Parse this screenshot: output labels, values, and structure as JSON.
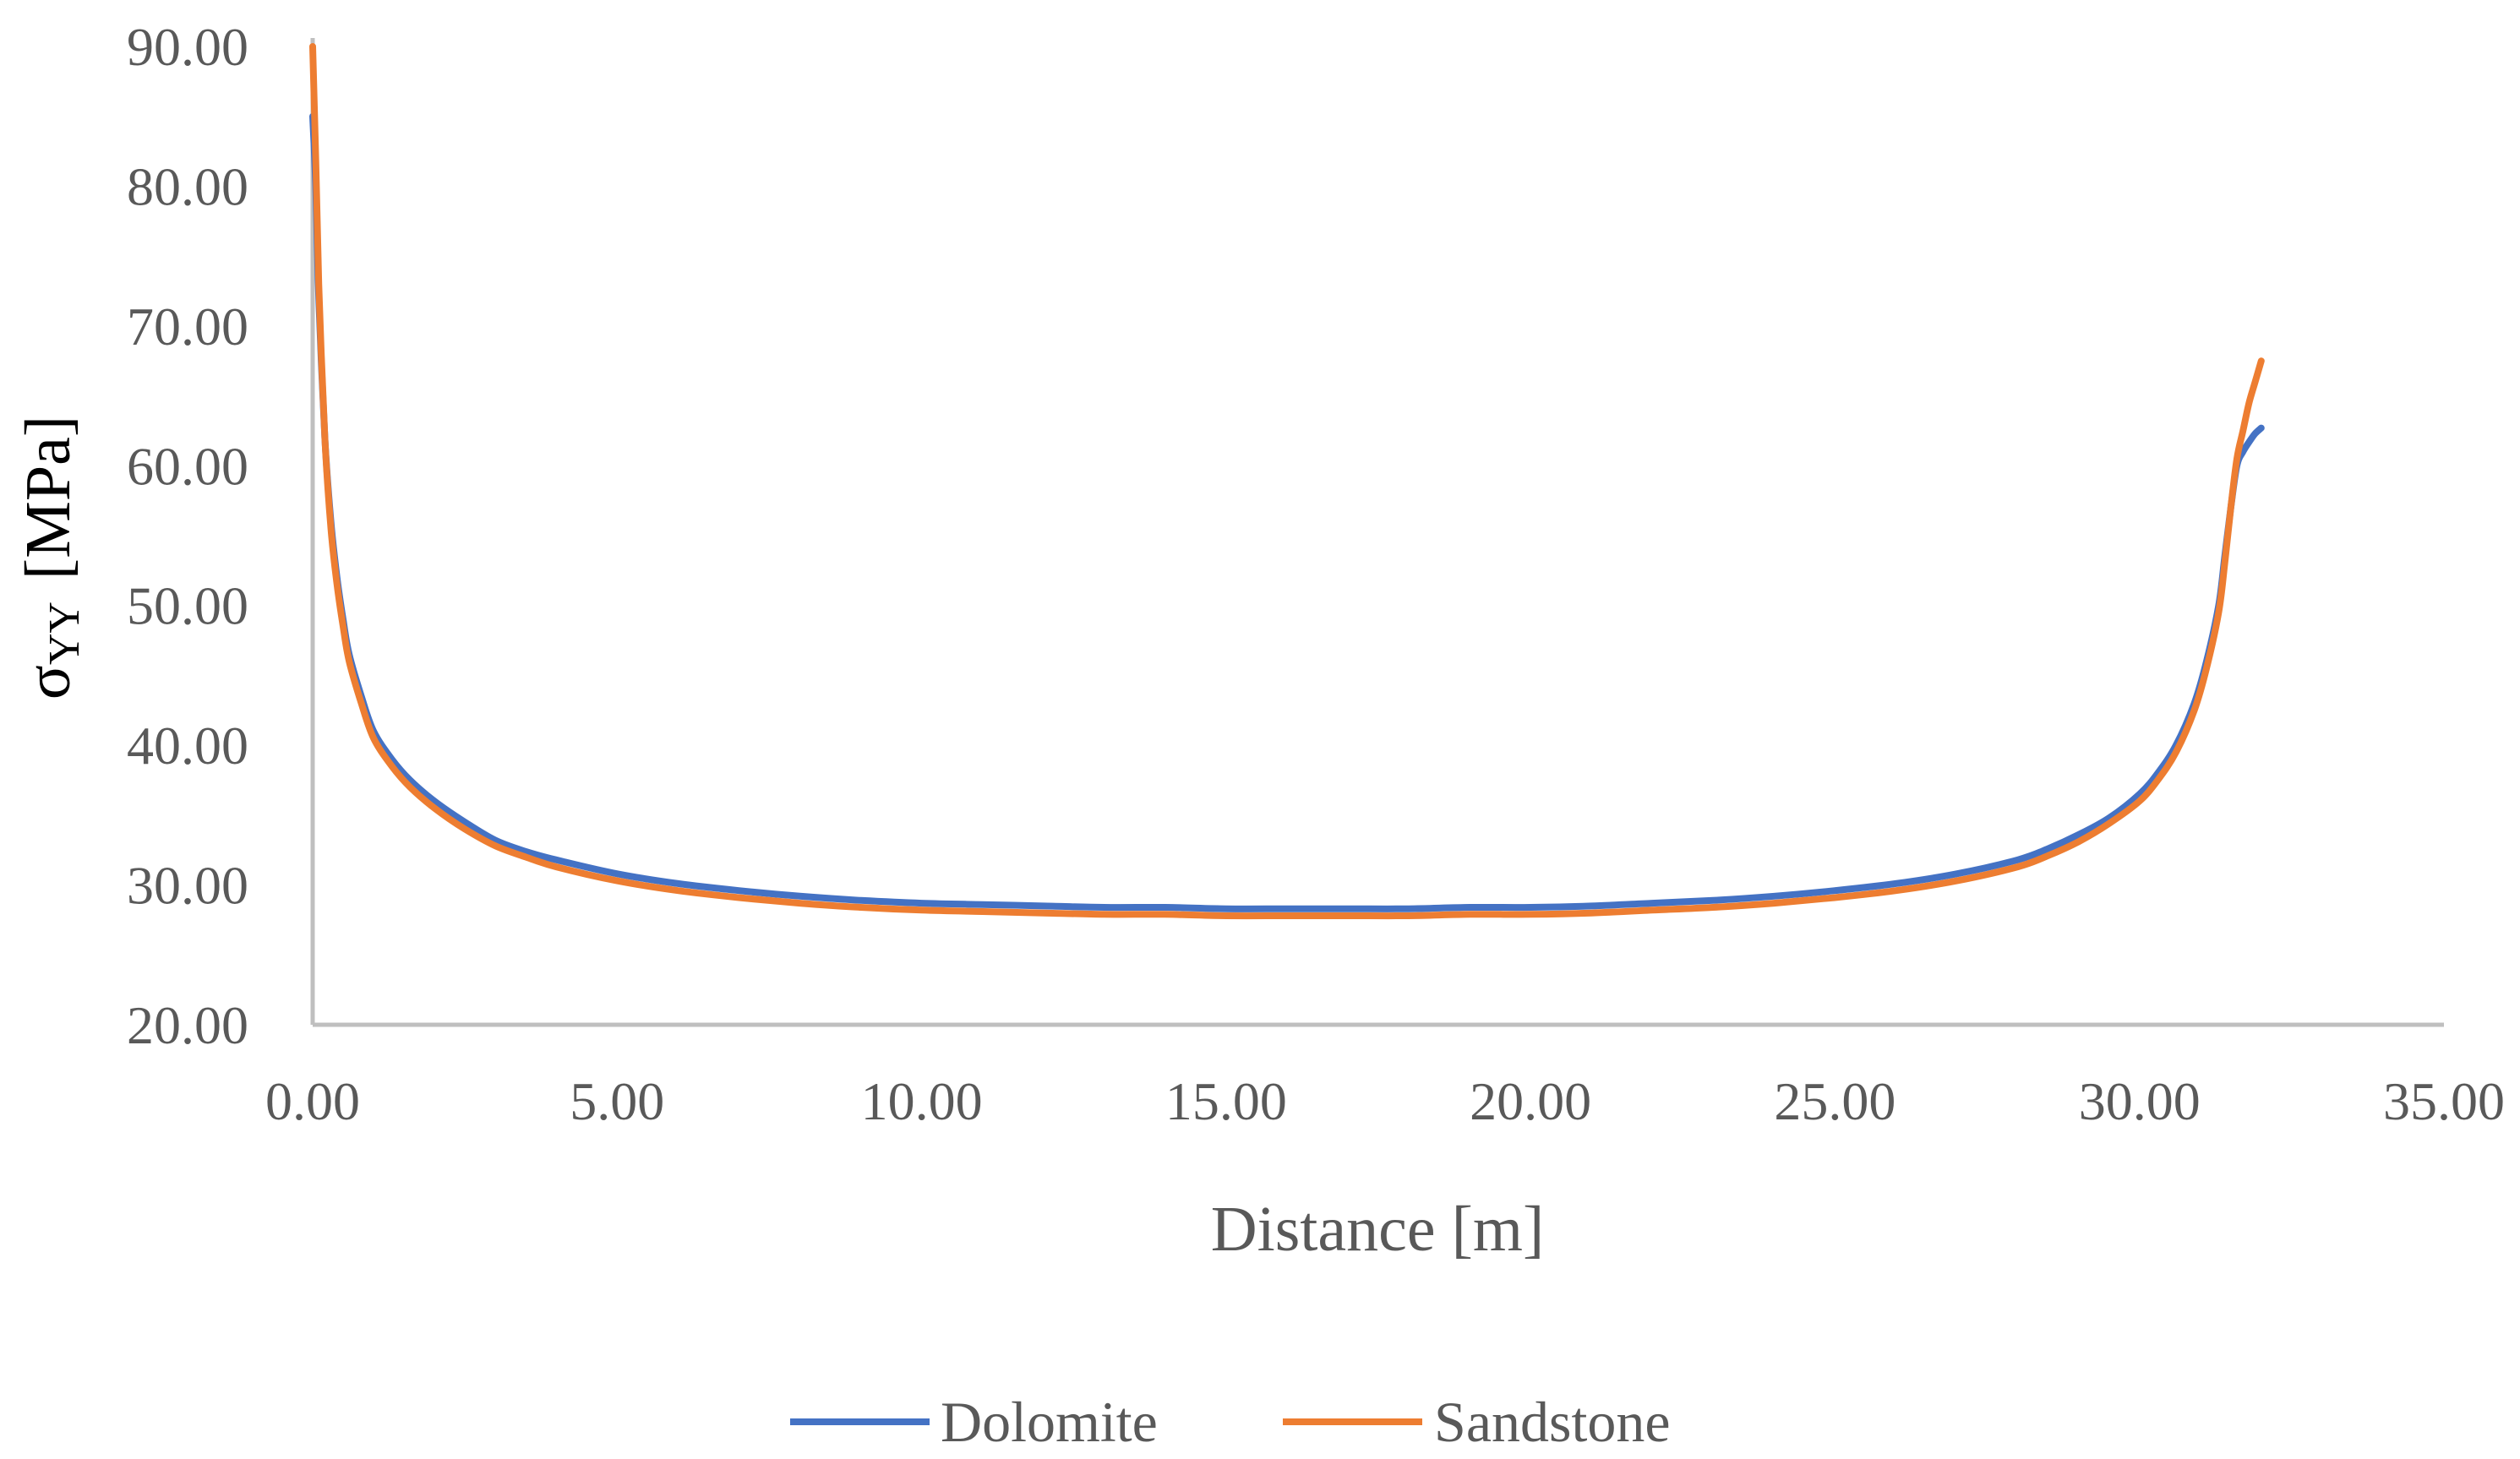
{
  "chart_data": {
    "type": "line",
    "xlabel": "Distance [m]",
    "ylabel": {
      "symbol": "σ",
      "subscript": "YY",
      "unit": "[MPa]"
    },
    "xlim": [
      0,
      35
    ],
    "ylim": [
      20,
      90
    ],
    "x_ticks": [
      "0.00",
      "5.00",
      "10.00",
      "15.00",
      "20.00",
      "25.00",
      "30.00",
      "35.00"
    ],
    "y_ticks": [
      "20.00",
      "30.00",
      "40.00",
      "50.00",
      "60.00",
      "70.00",
      "80.00",
      "90.00"
    ],
    "grid": false,
    "legend_position": "bottom",
    "series": [
      {
        "name": "Dolomite",
        "color": "#4472C4",
        "x": [
          0.0,
          0.05,
          0.1,
          0.2,
          0.3,
          0.4,
          0.5,
          0.6,
          0.8,
          1.0,
          1.3,
          1.6,
          2.0,
          2.5,
          3.0,
          3.5,
          4.0,
          5.0,
          6.0,
          7.0,
          8.0,
          9.0,
          10.0,
          11.0,
          12.0,
          13.0,
          14.0,
          15.0,
          16.0,
          17.0,
          18.0,
          19.0,
          20.0,
          21.0,
          22.0,
          23.0,
          24.0,
          25.0,
          26.0,
          27.0,
          28.0,
          28.5,
          29.0,
          29.5,
          30.0,
          30.3,
          30.6,
          30.9,
          31.1,
          31.3,
          31.4,
          31.5,
          31.6,
          31.7,
          31.8,
          31.9,
          32.0
        ],
        "values": [
          85.0,
          80.0,
          72.0,
          62.0,
          56.0,
          52.0,
          49.0,
          46.5,
          43.5,
          41.0,
          39.0,
          37.5,
          36.0,
          34.5,
          33.2,
          32.4,
          31.8,
          30.8,
          30.1,
          29.6,
          29.2,
          28.9,
          28.7,
          28.6,
          28.5,
          28.4,
          28.4,
          28.3,
          28.3,
          28.3,
          28.3,
          28.4,
          28.4,
          28.5,
          28.7,
          28.9,
          29.2,
          29.6,
          30.1,
          30.8,
          31.8,
          32.6,
          33.6,
          34.8,
          36.5,
          38.0,
          40.0,
          43.0,
          46.0,
          50.0,
          53.5,
          57.0,
          60.0,
          61.0,
          61.7,
          62.3,
          62.7
        ]
      },
      {
        "name": "Sandstone",
        "color": "#ED7D31",
        "x": [
          0.0,
          0.05,
          0.1,
          0.2,
          0.3,
          0.4,
          0.5,
          0.6,
          0.8,
          1.0,
          1.3,
          1.6,
          2.0,
          2.5,
          3.0,
          3.5,
          4.0,
          5.0,
          6.0,
          7.0,
          8.0,
          9.0,
          10.0,
          11.0,
          12.0,
          13.0,
          14.0,
          15.0,
          16.0,
          17.0,
          18.0,
          19.0,
          20.0,
          21.0,
          22.0,
          23.0,
          24.0,
          25.0,
          26.0,
          27.0,
          28.0,
          28.5,
          29.0,
          29.5,
          30.0,
          30.3,
          30.6,
          30.9,
          31.1,
          31.3,
          31.4,
          31.5,
          31.6,
          31.7,
          31.8,
          31.9,
          32.0
        ],
        "values": [
          90.0,
          82.0,
          73.0,
          62.0,
          55.5,
          51.5,
          48.5,
          46.0,
          43.0,
          40.5,
          38.5,
          37.0,
          35.5,
          34.0,
          32.8,
          32.0,
          31.3,
          30.3,
          29.6,
          29.1,
          28.7,
          28.4,
          28.2,
          28.1,
          28.0,
          27.9,
          27.9,
          27.8,
          27.8,
          27.8,
          27.8,
          27.9,
          27.9,
          28.0,
          28.2,
          28.4,
          28.7,
          29.1,
          29.6,
          30.3,
          31.3,
          32.1,
          33.1,
          34.4,
          36.0,
          37.5,
          39.5,
          42.5,
          45.5,
          49.5,
          53.0,
          57.0,
          60.5,
          62.5,
          64.5,
          66.0,
          67.5
        ]
      }
    ]
  }
}
